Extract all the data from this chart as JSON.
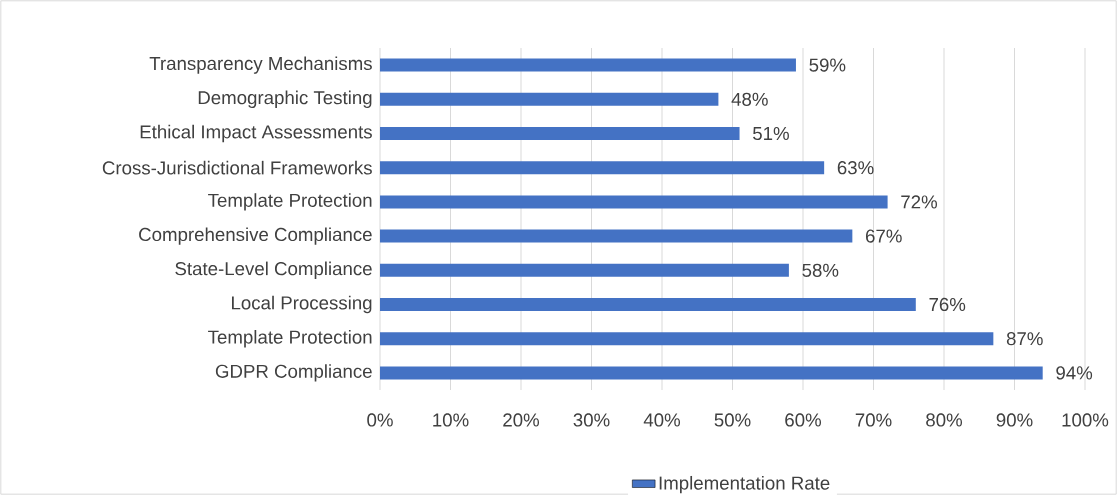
{
  "chart_data": {
    "type": "bar",
    "orientation": "horizontal",
    "categories": [
      "Transparency Mechanisms",
      "Demographic Testing",
      "Ethical Impact Assessments",
      "Cross-Jurisdictional Frameworks",
      "Template Protection",
      "Comprehensive Compliance",
      "State-Level Compliance",
      "Local Processing",
      "Template Protection",
      "GDPR Compliance"
    ],
    "series": [
      {
        "name": "Implementation Rate",
        "color": "#4472c4",
        "values": [
          59,
          48,
          51,
          63,
          72,
          67,
          58,
          76,
          87,
          94
        ],
        "value_labels": [
          "59%",
          "48%",
          "51%",
          "63%",
          "72%",
          "67%",
          "58%",
          "76%",
          "87%",
          "94%"
        ]
      }
    ],
    "xlim": [
      0,
      100
    ],
    "xticks": [
      {
        "value": 0,
        "label": "0%"
      },
      {
        "value": 10,
        "label": "10%"
      },
      {
        "value": 20,
        "label": "20%"
      },
      {
        "value": 30,
        "label": "30%"
      },
      {
        "value": 40,
        "label": "40%"
      },
      {
        "value": 50,
        "label": "50%"
      },
      {
        "value": 60,
        "label": "60%"
      },
      {
        "value": 70,
        "label": "70%"
      },
      {
        "value": 80,
        "label": "80%"
      },
      {
        "value": 90,
        "label": "90%"
      },
      {
        "value": 100,
        "label": "100%"
      }
    ],
    "grid": "x",
    "legend": "bottom"
  }
}
